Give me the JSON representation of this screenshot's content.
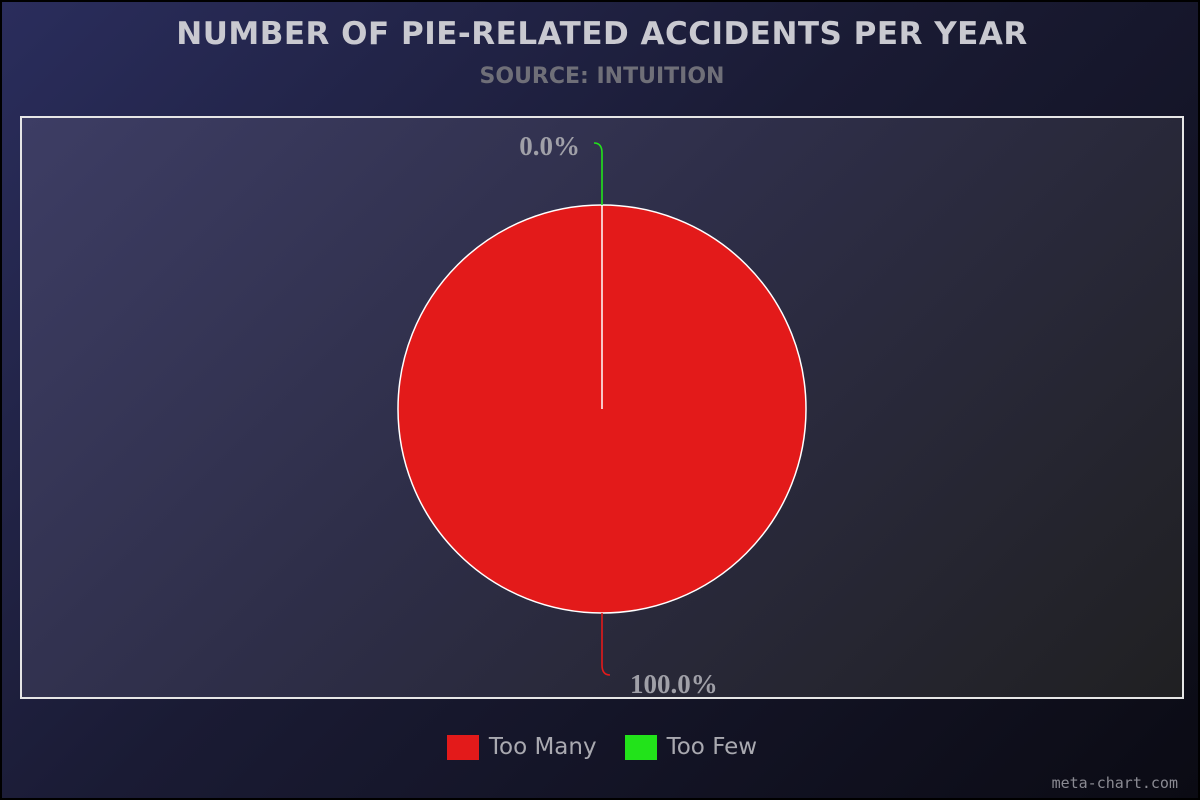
{
  "chart_data": {
    "type": "pie",
    "title": "NUMBER OF PIE-RELATED ACCIDENTS PER YEAR",
    "subtitle": "SOURCE: INTUITION",
    "slices": [
      {
        "label": "Too Many",
        "value": 100.0,
        "display": "100.0%",
        "color": "#e31a1a"
      },
      {
        "label": "Too Few",
        "value": 0.0,
        "display": "0.0%",
        "color": "#22e31a"
      }
    ],
    "legend_position": "bottom-center"
  },
  "watermark": "meta-chart.com"
}
